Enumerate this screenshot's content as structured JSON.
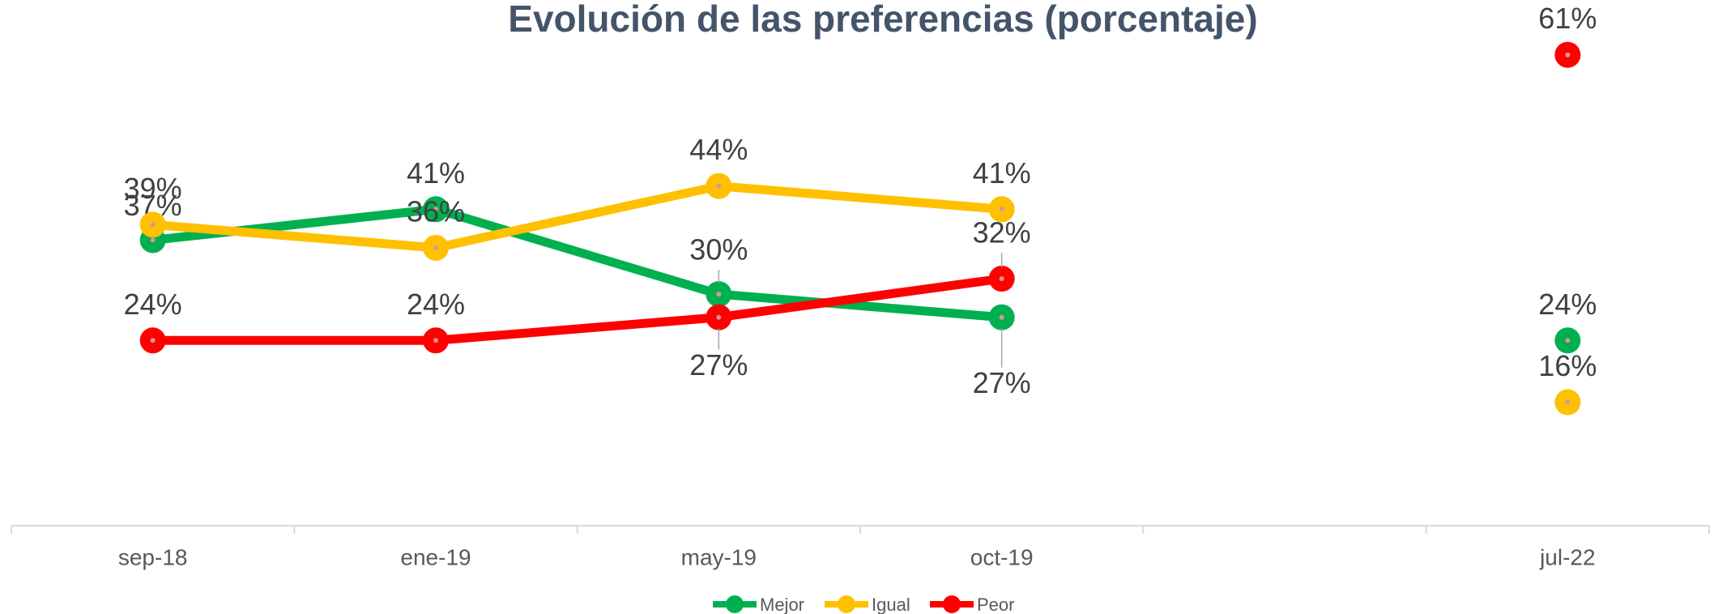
{
  "chart_data": {
    "type": "line",
    "title": "Evolución de las preferencias (porcentaje)",
    "categories": [
      "sep-18",
      "ene-19",
      "may-19",
      "oct-19",
      null,
      "jul-22"
    ],
    "ylim": [
      0,
      68
    ],
    "series": [
      {
        "name": "Mejor",
        "color": "#00b050",
        "values": [
          37,
          41,
          30,
          27,
          null,
          24
        ],
        "value_labels": [
          "37%",
          "41%",
          "30%",
          "27%",
          null,
          "24%"
        ]
      },
      {
        "name": "Igual",
        "color": "#ffc000",
        "values": [
          39,
          36,
          44,
          41,
          null,
          16
        ],
        "value_labels": [
          "39%",
          "36%",
          "44%",
          "41%",
          null,
          "16%"
        ]
      },
      {
        "name": "Peor",
        "color": "#ff0000",
        "values": [
          24,
          24,
          27,
          32,
          null,
          61
        ],
        "value_labels": [
          "24%",
          "24%",
          "27%",
          "32%",
          null,
          "61%"
        ]
      }
    ]
  }
}
